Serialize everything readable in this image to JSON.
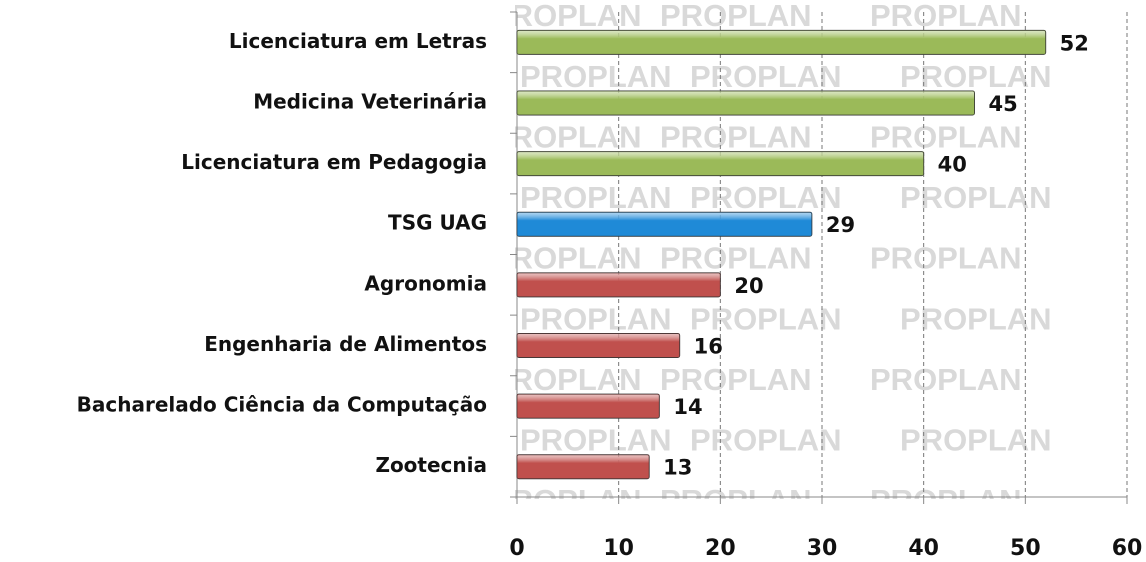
{
  "chart_data": {
    "type": "bar",
    "orientation": "horizontal",
    "watermark": "PROPLAN",
    "categories": [
      "Licenciatura em Letras",
      "Medicina Veterinária",
      "Licenciatura em Pedagogia",
      "TSG UAG",
      "Agronomia",
      "Engenharia de Alimentos",
      "Bacharelado Ciência da Computação",
      "Zootecnia"
    ],
    "values": [
      52,
      45,
      40,
      29,
      20,
      16,
      14,
      13
    ],
    "colors": [
      "#9bbb59",
      "#9bbb59",
      "#9bbb59",
      "#1f8ad8",
      "#c0504d",
      "#c0504d",
      "#c0504d",
      "#c0504d"
    ],
    "xlim": [
      0,
      60
    ],
    "xticks": [
      0,
      10,
      20,
      30,
      40,
      50,
      60
    ],
    "grid": true
  }
}
